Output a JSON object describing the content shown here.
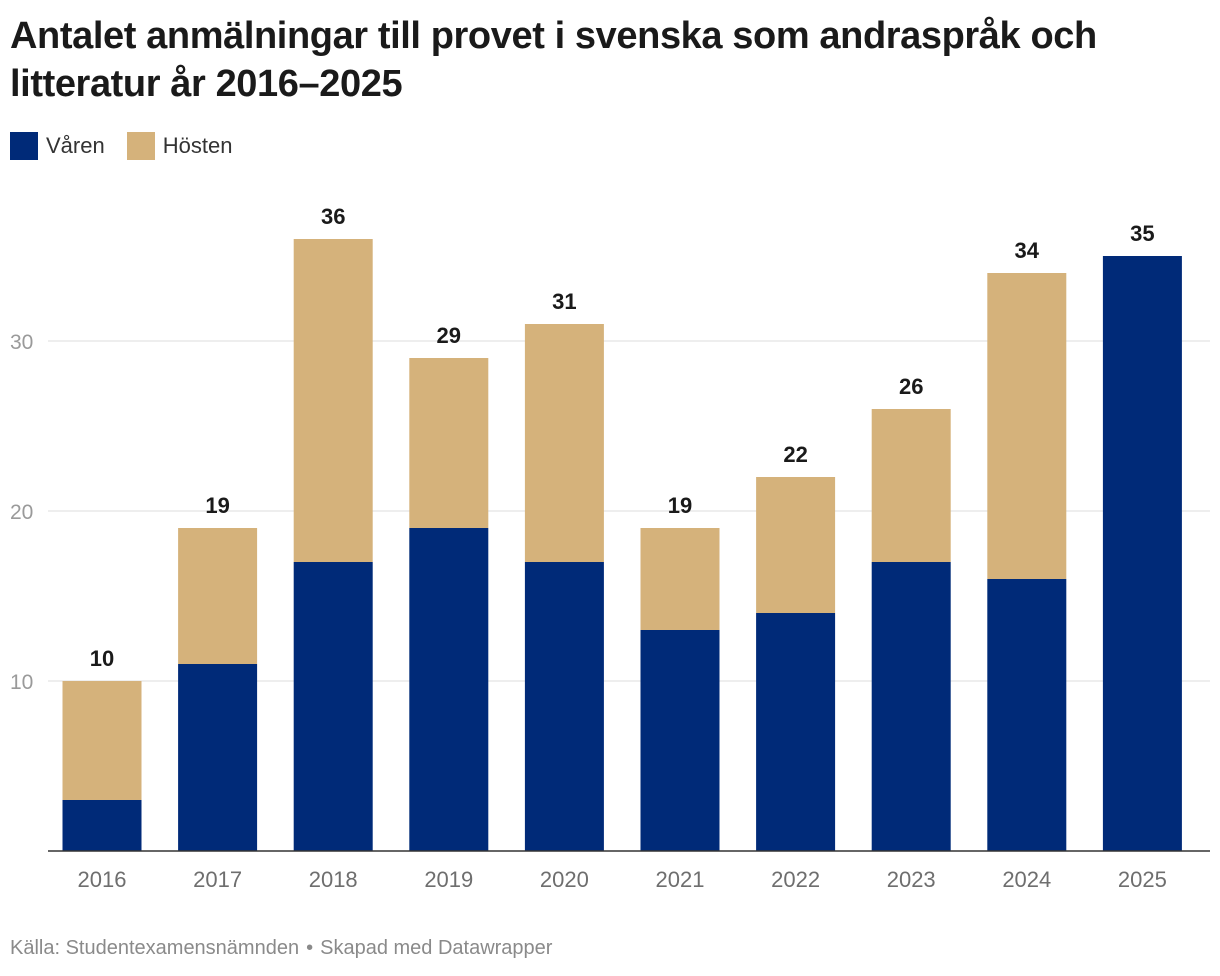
{
  "header": {
    "title": "Antalet anmälningar till provet i svenska som andraspråk och litteratur år 2016–2025"
  },
  "legend": {
    "items": [
      {
        "label": "Våren",
        "color": "#002a78"
      },
      {
        "label": "Hösten",
        "color": "#d5b27b"
      }
    ]
  },
  "footer": {
    "source": "Källa: Studentexamensnämnden",
    "separator": "•",
    "credit": "Skapad med Datawrapper"
  },
  "chart_data": {
    "type": "bar",
    "stacked": true,
    "categories": [
      "2016",
      "2017",
      "2018",
      "2019",
      "2020",
      "2021",
      "2022",
      "2023",
      "2024",
      "2025"
    ],
    "series": [
      {
        "name": "Våren",
        "color": "#002a78",
        "values": [
          3,
          11,
          17,
          19,
          17,
          13,
          14,
          17,
          16,
          35
        ]
      },
      {
        "name": "Hösten",
        "color": "#d5b27b",
        "values": [
          7,
          8,
          19,
          10,
          14,
          6,
          8,
          9,
          18,
          0
        ]
      }
    ],
    "totals": [
      10,
      19,
      36,
      29,
      31,
      19,
      22,
      26,
      34,
      35
    ],
    "yticks": [
      10,
      20,
      30
    ],
    "ylim": [
      0,
      36
    ],
    "grid": true,
    "legend_position": "top-left",
    "xlabel": "",
    "ylabel": ""
  }
}
